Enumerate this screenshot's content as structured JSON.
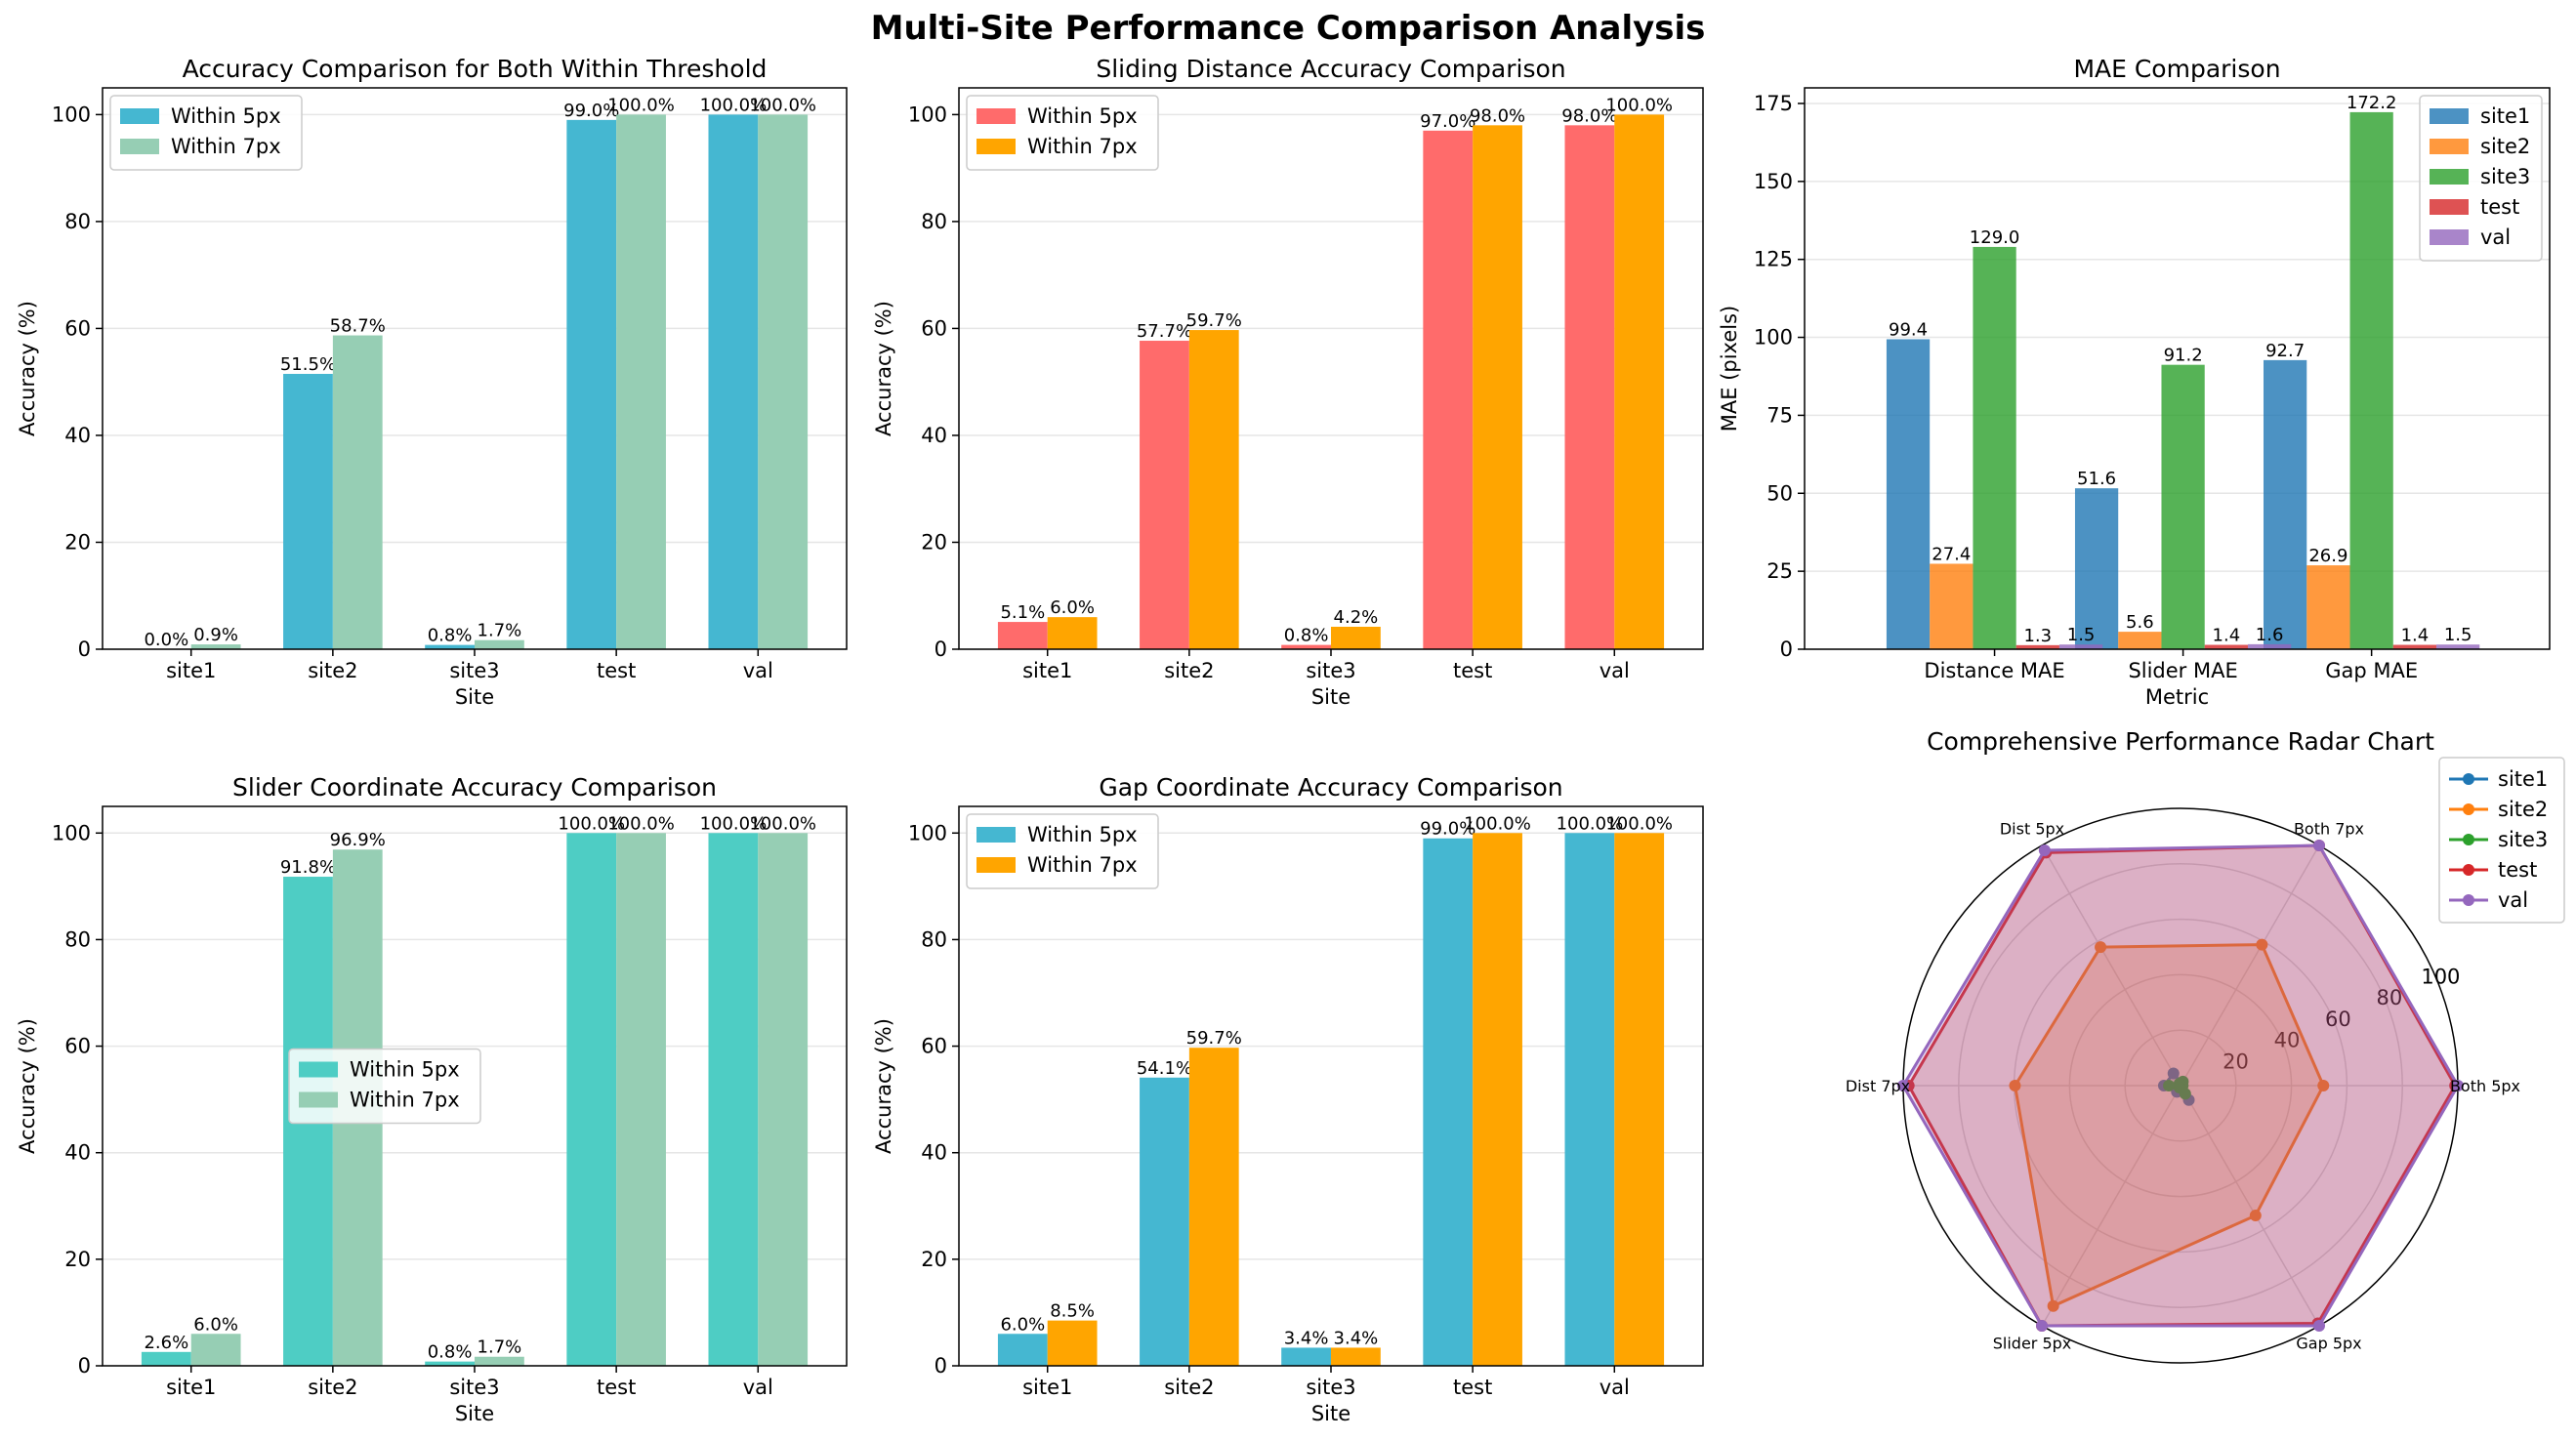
{
  "suptitle": "Multi-Site Performance Comparison Analysis",
  "chart_data": [
    {
      "type": "bar",
      "title": "Accuracy Comparison for Both Within Threshold",
      "xlabel": "Site",
      "ylabel": "Accuracy (%)",
      "categories": [
        "site1",
        "site2",
        "site3",
        "test",
        "val"
      ],
      "ylim": [
        0,
        105
      ],
      "yticks": [
        0,
        20,
        40,
        60,
        80,
        100
      ],
      "grid": "y",
      "legend": "upper left",
      "series": [
        {
          "name": "Within 5px",
          "color": "#45b7d1",
          "values": [
            0.0,
            51.5,
            0.8,
            99.0,
            100.0
          ],
          "labels": [
            "0.0%",
            "51.5%",
            "0.8%",
            "99.0%",
            "100.0%"
          ]
        },
        {
          "name": "Within 7px",
          "color": "#96ceb4",
          "values": [
            0.9,
            58.7,
            1.7,
            100.0,
            100.0
          ],
          "labels": [
            "0.9%",
            "58.7%",
            "1.7%",
            "100.0%",
            "100.0%"
          ]
        }
      ]
    },
    {
      "type": "bar",
      "title": "Sliding Distance Accuracy Comparison",
      "xlabel": "Site",
      "ylabel": "Accuracy (%)",
      "categories": [
        "site1",
        "site2",
        "site3",
        "test",
        "val"
      ],
      "ylim": [
        0,
        105
      ],
      "yticks": [
        0,
        20,
        40,
        60,
        80,
        100
      ],
      "grid": "y",
      "legend": "upper left",
      "series": [
        {
          "name": "Within 5px",
          "color": "#ff6b6b",
          "values": [
            5.1,
            57.7,
            0.8,
            97.0,
            98.0
          ],
          "labels": [
            "5.1%",
            "57.7%",
            "0.8%",
            "97.0%",
            "98.0%"
          ]
        },
        {
          "name": "Within 7px",
          "color": "#ffa500",
          "values": [
            6.0,
            59.7,
            4.2,
            98.0,
            100.0
          ],
          "labels": [
            "6.0%",
            "59.7%",
            "4.2%",
            "98.0%",
            "100.0%"
          ]
        }
      ]
    },
    {
      "type": "bar",
      "title": "MAE Comparison",
      "xlabel": "Metric",
      "ylabel": "MAE (pixels)",
      "categories": [
        "Distance MAE",
        "Slider MAE",
        "Gap MAE"
      ],
      "ylim": [
        0,
        180
      ],
      "yticks": [
        0,
        25,
        50,
        75,
        100,
        125,
        150,
        175
      ],
      "grid": "y",
      "legend": "upper right",
      "series": [
        {
          "name": "site1",
          "color": "#1f77b4",
          "values": [
            99.4,
            51.6,
            92.7
          ],
          "labels": [
            "99.4",
            "51.6",
            "92.7"
          ]
        },
        {
          "name": "site2",
          "color": "#ff7f0e",
          "values": [
            27.4,
            5.6,
            26.9
          ],
          "labels": [
            "27.4",
            "5.6",
            "26.9"
          ]
        },
        {
          "name": "site3",
          "color": "#2ca02c",
          "values": [
            129.0,
            91.2,
            172.2
          ],
          "labels": [
            "129.0",
            "91.2",
            "172.2"
          ]
        },
        {
          "name": "test",
          "color": "#d62728",
          "values": [
            1.3,
            1.4,
            1.4
          ],
          "labels": [
            "1.3",
            "1.4",
            "1.4"
          ]
        },
        {
          "name": "val",
          "color": "#9467bd",
          "values": [
            1.5,
            1.6,
            1.5
          ],
          "labels": [
            "1.5",
            "1.6",
            "1.5"
          ]
        }
      ]
    },
    {
      "type": "bar",
      "title": "Slider Coordinate Accuracy Comparison",
      "xlabel": "Site",
      "ylabel": "Accuracy (%)",
      "categories": [
        "site1",
        "site2",
        "site3",
        "test",
        "val"
      ],
      "ylim": [
        0,
        105
      ],
      "yticks": [
        0,
        20,
        40,
        60,
        80,
        100
      ],
      "grid": "y",
      "legend": "center right",
      "series": [
        {
          "name": "Within 5px",
          "color": "#4ecdc4",
          "values": [
            2.6,
            91.8,
            0.8,
            100.0,
            100.0
          ],
          "labels": [
            "2.6%",
            "91.8%",
            "0.8%",
            "100.0%",
            "100.0%"
          ]
        },
        {
          "name": "Within 7px",
          "color": "#96ceb4",
          "values": [
            6.0,
            96.9,
            1.7,
            100.0,
            100.0
          ],
          "labels": [
            "6.0%",
            "96.9%",
            "1.7%",
            "100.0%",
            "100.0%"
          ]
        }
      ]
    },
    {
      "type": "bar",
      "title": "Gap Coordinate Accuracy Comparison",
      "xlabel": "Site",
      "ylabel": "Accuracy (%)",
      "categories": [
        "site1",
        "site2",
        "site3",
        "test",
        "val"
      ],
      "ylim": [
        0,
        105
      ],
      "yticks": [
        0,
        20,
        40,
        60,
        80,
        100
      ],
      "grid": "y",
      "legend": "upper left",
      "series": [
        {
          "name": "Within 5px",
          "color": "#45b7d1",
          "values": [
            6.0,
            54.1,
            3.4,
            99.0,
            100.0
          ],
          "labels": [
            "6.0%",
            "54.1%",
            "3.4%",
            "99.0%",
            "100.0%"
          ]
        },
        {
          "name": "Within 7px",
          "color": "#ffa500",
          "values": [
            8.5,
            59.7,
            3.4,
            100.0,
            100.0
          ],
          "labels": [
            "8.5%",
            "59.7%",
            "3.4%",
            "100.0%",
            "100.0%"
          ]
        }
      ]
    },
    {
      "type": "radar",
      "title": "Comprehensive Performance Radar Chart",
      "axes": [
        "Both 5px",
        "Both 7px",
        "Dist 5px",
        "Dist 7px",
        "Slider 5px",
        "Gap 5px"
      ],
      "rlim": [
        0,
        100
      ],
      "rticks": [
        20,
        40,
        60,
        80,
        100
      ],
      "legend": "upper right",
      "series": [
        {
          "name": "site1",
          "color": "#1f77b4",
          "values": [
            0.0,
            0.9,
            5.1,
            6.0,
            2.6,
            6.0
          ]
        },
        {
          "name": "site2",
          "color": "#ff7f0e",
          "values": [
            51.5,
            58.7,
            57.7,
            59.7,
            91.8,
            54.1
          ]
        },
        {
          "name": "site3",
          "color": "#2ca02c",
          "values": [
            0.8,
            1.7,
            0.8,
            4.2,
            0.8,
            3.4
          ]
        },
        {
          "name": "test",
          "color": "#d62728",
          "values": [
            99.0,
            100.0,
            97.0,
            98.0,
            100.0,
            99.0
          ]
        },
        {
          "name": "val",
          "color": "#9467bd",
          "values": [
            100.0,
            100.0,
            98.0,
            100.0,
            100.0,
            100.0
          ]
        }
      ]
    }
  ]
}
